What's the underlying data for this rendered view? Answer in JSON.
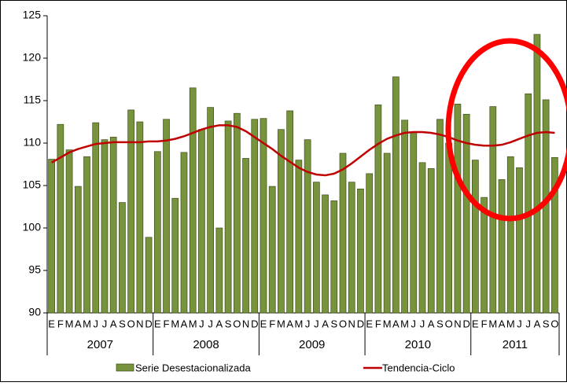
{
  "chart_data": {
    "type": "bar_line",
    "categories": [
      "E",
      "F",
      "M",
      "A",
      "M",
      "J",
      "J",
      "A",
      "S",
      "O",
      "N",
      "D",
      "E",
      "F",
      "M",
      "A",
      "M",
      "J",
      "J",
      "A",
      "S",
      "O",
      "N",
      "D",
      "E",
      "F",
      "M",
      "A",
      "M",
      "J",
      "J",
      "A",
      "S",
      "O",
      "N",
      "D",
      "E",
      "F",
      "M",
      "A",
      "M",
      "J",
      "J",
      "A",
      "S",
      "O",
      "N",
      "D",
      "E",
      "F",
      "M",
      "A",
      "M",
      "J",
      "J",
      "A",
      "S",
      "O"
    ],
    "year_labels": [
      "2007",
      "2008",
      "2009",
      "2010",
      "2011"
    ],
    "series": [
      {
        "name": "Serie Desestacionalizada",
        "kind": "bar",
        "color": "#77933c",
        "values": [
          108.1,
          112.2,
          109.2,
          104.9,
          108.4,
          112.4,
          110.4,
          110.7,
          103.0,
          113.9,
          112.5,
          98.9,
          109.0,
          112.8,
          103.5,
          108.9,
          116.5,
          111.6,
          114.2,
          100.0,
          112.6,
          113.5,
          108.2,
          112.8,
          112.9,
          104.9,
          111.6,
          113.8,
          108.0,
          110.4,
          105.4,
          103.9,
          103.2,
          108.8,
          105.4,
          104.6,
          106.4,
          114.5,
          108.8,
          117.8,
          112.7,
          111.3,
          107.7,
          107.0,
          112.8,
          110.0,
          114.6,
          113.4,
          108.0,
          103.6,
          114.3,
          105.7,
          108.4,
          107.1,
          115.8,
          122.8,
          115.1,
          108.3
        ]
      },
      {
        "name": "Tendencia-Ciclo",
        "kind": "line",
        "color": "#c00000",
        "values": [
          107.7,
          108.3,
          108.9,
          109.3,
          109.6,
          109.9,
          110.0,
          110.1,
          110.1,
          110.1,
          110.1,
          110.2,
          110.2,
          110.3,
          110.5,
          110.8,
          111.2,
          111.6,
          111.9,
          112.1,
          112.1,
          111.9,
          111.4,
          110.7,
          110.0,
          109.3,
          108.5,
          107.8,
          107.1,
          106.6,
          106.3,
          106.2,
          106.4,
          106.9,
          107.6,
          108.4,
          109.2,
          109.9,
          110.5,
          110.9,
          111.2,
          111.3,
          111.3,
          111.2,
          111.0,
          110.7,
          110.3,
          110.0,
          109.8,
          109.7,
          109.7,
          109.8,
          110.1,
          110.5,
          110.9,
          111.2,
          111.3,
          111.2
        ]
      }
    ],
    "ylim": [
      90,
      125
    ],
    "yticks": [
      90,
      95,
      100,
      105,
      110,
      115,
      120,
      125
    ]
  }
}
